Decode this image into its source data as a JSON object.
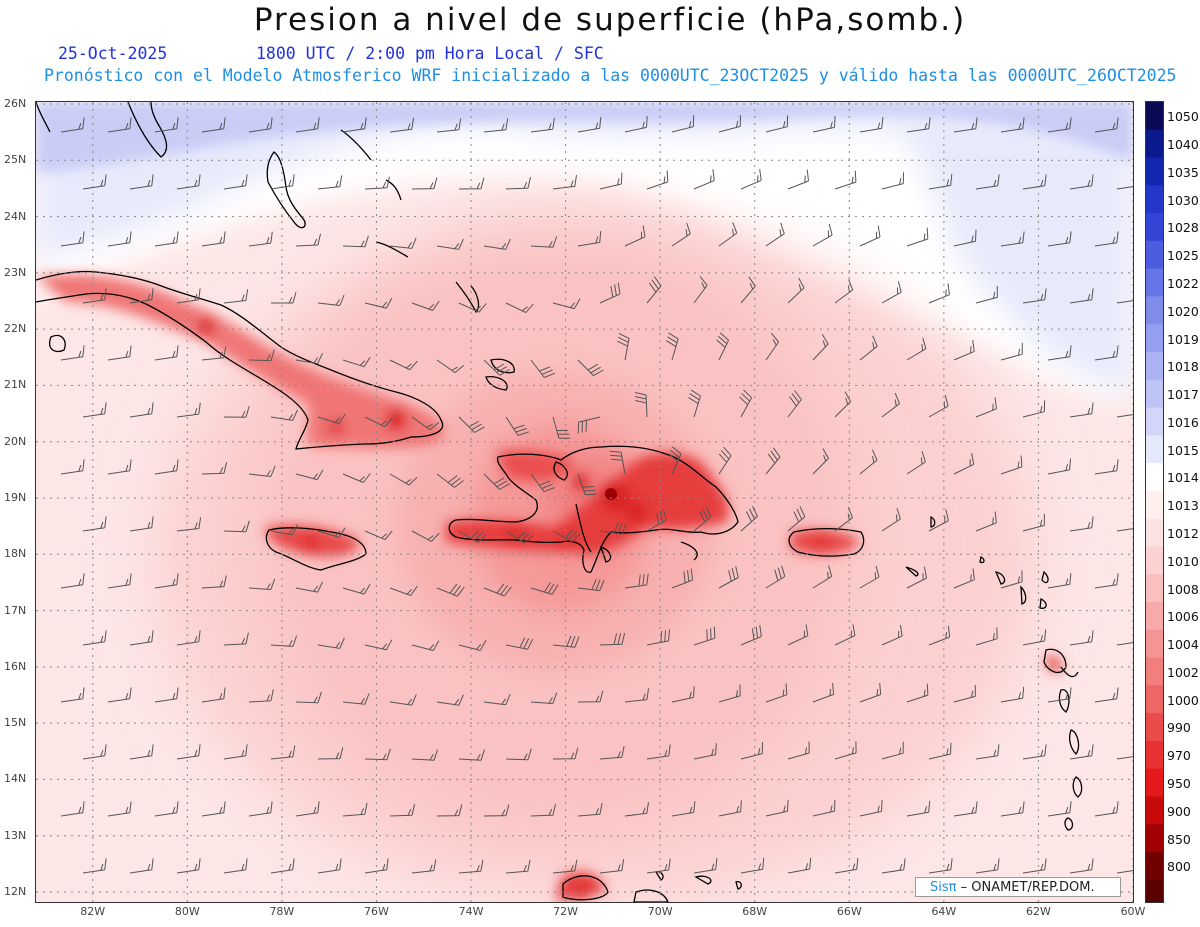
{
  "title": "Presion a nivel de superficie (hPa,somb.)",
  "header": {
    "date": "25-Oct-2025",
    "time": "1800 UTC / 2:00 pm Hora Local / SFC",
    "model": "Pronóstico con el Modelo Atmosferico WRF inicializado a las 0000UTC_23OCT2025 y válido hasta las  0000UTC_26OCT2025"
  },
  "map": {
    "lat_labels": [
      "26N",
      "25N",
      "24N",
      "23N",
      "22N",
      "21N",
      "20N",
      "19N",
      "18N",
      "17N",
      "16N",
      "15N",
      "14N",
      "13N",
      "12N"
    ],
    "lon_labels": [
      "82W",
      "80W",
      "78W",
      "76W",
      "74W",
      "72W",
      "70W",
      "68W",
      "66W",
      "64W",
      "62W",
      "60W"
    ],
    "lat_range": [
      12,
      26
    ],
    "lon_range": [
      -83.2,
      -60
    ],
    "grid": true,
    "low_center": {
      "lon": -71.0,
      "lat": 19.0
    }
  },
  "colorbar": {
    "levels": [
      "1050",
      "1040",
      "1035",
      "1030",
      "1028",
      "1025",
      "1022",
      "1020",
      "1019",
      "1018",
      "1017",
      "1016",
      "1015",
      "1014",
      "1013",
      "1012",
      "1010",
      "1008",
      "1006",
      "1004",
      "1002",
      "1000",
      "990",
      "970",
      "950",
      "900",
      "850",
      "800"
    ],
    "colors": [
      "#0b0b55",
      "#0a1a8c",
      "#1227b0",
      "#2437c8",
      "#3546d6",
      "#4c5de0",
      "#6676e6",
      "#7f8cea",
      "#959ff0",
      "#aab2f4",
      "#bfc4f7",
      "#d3d6f9",
      "#e6e8fc",
      "#ffffff",
      "#fff0f0",
      "#fde2e2",
      "#fcd2d2",
      "#fac0c0",
      "#f8aaaa",
      "#f59494",
      "#f27e7e",
      "#ee6666",
      "#ea4c4c",
      "#e63232",
      "#e41a1a",
      "#c80a0a",
      "#a00000",
      "#700000"
    ]
  },
  "logo": {
    "sis": "Sisπ",
    "org": " – ONAMET/REP.DOM."
  }
}
